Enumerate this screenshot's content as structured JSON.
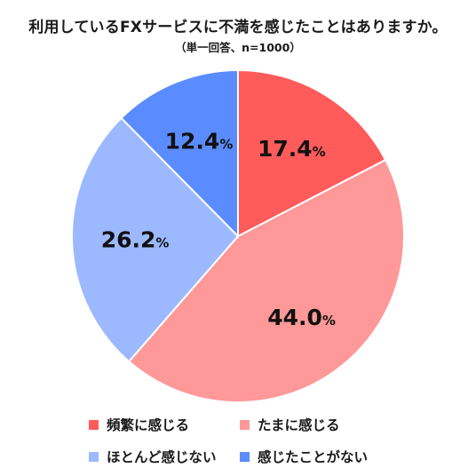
{
  "header": {
    "title": "利用しているFXサービスに不満を感じたことはありますか。",
    "subtitle": "（単一回答、n=1000）"
  },
  "chart_data": {
    "type": "pie",
    "title": "利用しているFXサービスに不満を感じたことはありますか。",
    "subtitle": "（単一回答、n=1000）",
    "start": "12 o'clock",
    "direction": "clockwise",
    "unit": "%",
    "slices": [
      {
        "label": "頻繁に感じる",
        "value": 17.4,
        "display": "17.4",
        "color": "#ff5b5b"
      },
      {
        "label": "たまに感じる",
        "value": 44.0,
        "display": "44.0",
        "color": "#ff9898"
      },
      {
        "label": "ほとんど感じない",
        "value": 26.2,
        "display": "26.2",
        "color": "#9cb9ff"
      },
      {
        "label": "感じたことがない",
        "value": 12.4,
        "display": "12.4",
        "color": "#5b8cff"
      }
    ],
    "legend": {
      "placement": "bottom",
      "entries": [
        "頻繁に感じる",
        "たまに感じる",
        "ほとんど感じない",
        "感じたことがない"
      ]
    }
  }
}
